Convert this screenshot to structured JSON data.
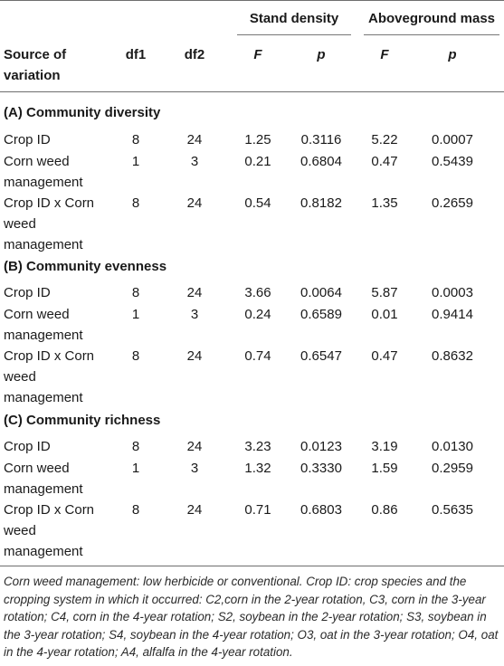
{
  "header": {
    "group_stand": "Stand density",
    "group_mass": "Aboveground mass",
    "source": "Source of variation",
    "df1": "df1",
    "df2": "df2",
    "F": "F",
    "p": "p"
  },
  "sections": [
    {
      "title": "(A) Community diversity",
      "rows": [
        {
          "label": "Crop ID",
          "df1": "8",
          "df2": "24",
          "sd_F": "1.25",
          "sd_p": "0.3116",
          "am_F": "5.22",
          "am_p": "0.0007"
        },
        {
          "label": "Corn weed management",
          "df1": "1",
          "df2": "3",
          "sd_F": "0.21",
          "sd_p": "0.6804",
          "am_F": "0.47",
          "am_p": "0.5439"
        },
        {
          "label": "Crop ID x Corn weed management",
          "df1": "8",
          "df2": "24",
          "sd_F": "0.54",
          "sd_p": "0.8182",
          "am_F": "1.35",
          "am_p": "0.2659"
        }
      ]
    },
    {
      "title": "(B) Community evenness",
      "rows": [
        {
          "label": "Crop ID",
          "df1": "8",
          "df2": "24",
          "sd_F": "3.66",
          "sd_p": "0.0064",
          "am_F": "5.87",
          "am_p": "0.0003"
        },
        {
          "label": "Corn weed management",
          "df1": "1",
          "df2": "3",
          "sd_F": "0.24",
          "sd_p": "0.6589",
          "am_F": "0.01",
          "am_p": "0.9414"
        },
        {
          "label": "Crop ID x Corn weed management",
          "df1": "8",
          "df2": "24",
          "sd_F": "0.74",
          "sd_p": "0.6547",
          "am_F": "0.47",
          "am_p": "0.8632"
        }
      ]
    },
    {
      "title": "(C) Community richness",
      "rows": [
        {
          "label": "Crop ID",
          "df1": "8",
          "df2": "24",
          "sd_F": "3.23",
          "sd_p": "0.0123",
          "am_F": "3.19",
          "am_p": "0.0130"
        },
        {
          "label": "Corn weed management",
          "df1": "1",
          "df2": "3",
          "sd_F": "1.32",
          "sd_p": "0.3330",
          "am_F": "1.59",
          "am_p": "0.2959"
        },
        {
          "label": "Crop ID x Corn weed management",
          "df1": "8",
          "df2": "24",
          "sd_F": "0.71",
          "sd_p": "0.6803",
          "am_F": "0.86",
          "am_p": "0.5635"
        }
      ]
    }
  ],
  "footnote": "Corn weed management: low herbicide or conventional. Crop ID: crop species and the cropping system in which it occurred: C2,corn in the 2-year rotation, C3, corn in the 3-year rotation; C4, corn in the 4-year rotation; S2, soybean in the 2-year rotation; S3, soybean in the 3-year rotation; S4, soybean in the 4-year rotation; O3, oat in the 3-year rotation; O4, oat in the 4-year rotation; A4, alfalfa in the 4-year rotation."
}
